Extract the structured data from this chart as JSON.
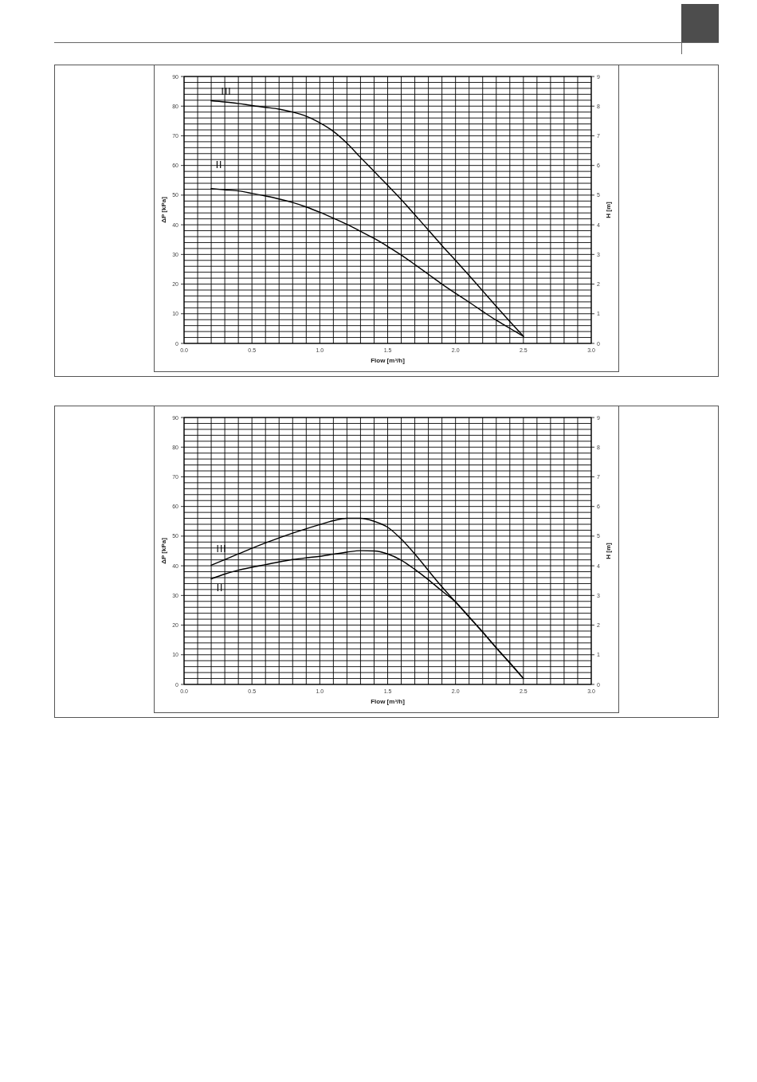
{
  "chart_data": [
    {
      "type": "line",
      "xlabel": "Flow [m³/h]",
      "ylabel": "ΔP [kPa]",
      "y2label": "H [m]",
      "x": [
        0.2,
        0.3,
        0.4,
        0.5,
        0.6,
        0.7,
        0.8,
        0.9,
        1.0,
        1.1,
        1.2,
        1.3,
        1.4,
        1.5,
        1.6,
        1.7,
        1.8,
        1.9,
        2.0,
        2.1,
        2.2,
        2.3,
        2.4,
        2.5
      ],
      "series": [
        {
          "name": "III",
          "color": "#000000",
          "values": [
            81.8,
            81.4,
            80.9,
            80.2,
            79.6,
            79.0,
            78.0,
            76.6,
            74.4,
            71.5,
            67.5,
            62.7,
            58.0,
            53.3,
            48.5,
            43.4,
            38.2,
            33.0,
            28.0,
            22.9,
            17.7,
            12.5,
            7.4,
            2.4
          ]
        },
        {
          "name": "II",
          "color": "#000000",
          "values": [
            52.2,
            51.8,
            51.4,
            50.6,
            49.7,
            48.7,
            47.5,
            46.0,
            44.2,
            42.2,
            40.1,
            37.8,
            35.4,
            32.7,
            29.8,
            26.6,
            23.3,
            20.0,
            16.9,
            13.9,
            10.8,
            7.8,
            5.1,
            2.4
          ]
        }
      ],
      "xlim": [
        0,
        3
      ],
      "xticks": [
        {
          "value": 0,
          "label": "0.0"
        },
        0.5,
        {
          "value": 1,
          "label": "1.0"
        },
        1.5,
        {
          "value": 2,
          "label": "2.0"
        },
        2.5,
        {
          "value": 3,
          "label": "3.0"
        }
      ],
      "ylim": [
        0,
        90
      ],
      "yticks": [
        0,
        10,
        20,
        30,
        40,
        50,
        60,
        70,
        80,
        90
      ],
      "y2lim": [
        0,
        9
      ],
      "y2ticks": [
        0,
        1,
        2,
        3,
        4,
        5,
        6,
        7,
        8,
        9
      ],
      "grid": true
    },
    {
      "type": "line",
      "xlabel": "Flow [m³/h]",
      "ylabel": "ΔP [kPa]",
      "y2label": "H [m]",
      "x": [
        0.2,
        0.3,
        0.4,
        0.5,
        0.6,
        0.7,
        0.8,
        0.9,
        1.0,
        1.1,
        1.2,
        1.3,
        1.4,
        1.5,
        1.6,
        1.7,
        1.8,
        1.9,
        2.0,
        2.1,
        2.2,
        2.3,
        2.4,
        2.5
      ],
      "series": [
        {
          "name": "III",
          "color": "#000000",
          "values": [
            40.2,
            42.1,
            44.0,
            45.9,
            47.7,
            49.4,
            51.0,
            52.5,
            53.9,
            55.2,
            56.0,
            56.0,
            55.0,
            53.0,
            49.0,
            44.0,
            38.4,
            32.9,
            27.8,
            22.7,
            17.6,
            12.3,
            7.2,
            2.0
          ]
        },
        {
          "name": "II",
          "color": "#000000",
          "values": [
            35.6,
            37.2,
            38.5,
            39.5,
            40.4,
            41.3,
            42.1,
            42.7,
            43.2,
            43.9,
            44.6,
            45.1,
            45.0,
            44.0,
            41.9,
            38.8,
            35.3,
            31.5,
            27.8,
            22.8,
            17.7,
            12.4,
            7.3,
            2.0
          ]
        }
      ],
      "xlim": [
        0,
        3
      ],
      "xticks": [
        {
          "value": 0,
          "label": "0.0"
        },
        0.5,
        {
          "value": 1,
          "label": "1.0"
        },
        1.5,
        {
          "value": 2,
          "label": "2.0"
        },
        2.5,
        {
          "value": 3,
          "label": "3.0"
        }
      ],
      "ylim": [
        0,
        90
      ],
      "yticks": [
        0,
        10,
        20,
        30,
        40,
        50,
        60,
        70,
        80,
        90
      ],
      "y2lim": [
        0,
        9
      ],
      "y2ticks": [
        0,
        1,
        2,
        3,
        4,
        5,
        6,
        7,
        8,
        9
      ],
      "grid": true
    }
  ]
}
